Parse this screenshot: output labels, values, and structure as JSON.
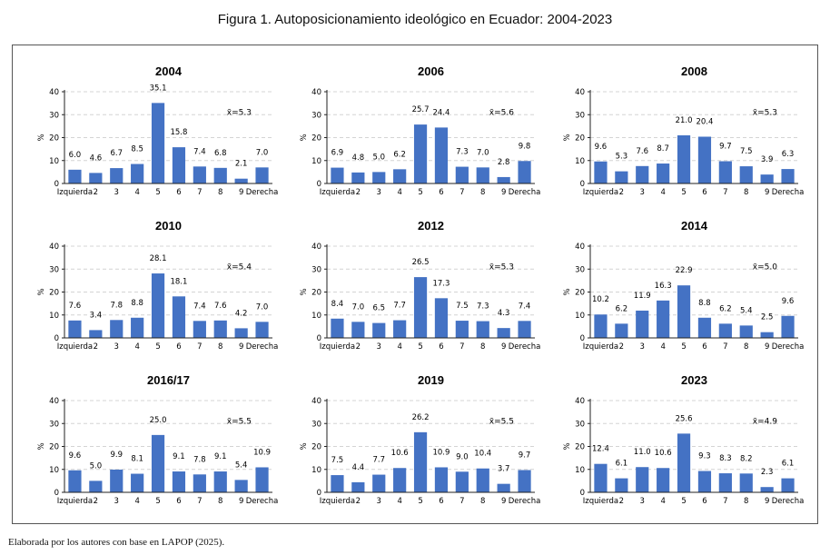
{
  "figure": {
    "title": "Figura 1. Autoposicionamiento ideológico en Ecuador: 2004-2023",
    "source": "Elaborada por los autores con base en LAPOP (2025)."
  },
  "colors": {
    "bar": "#4472c4",
    "grid": "#d4d4d4",
    "axis": "#222222"
  },
  "chart_data": [
    {
      "type": "bar",
      "title": "2004",
      "ylabel": "%",
      "ylim": [
        0,
        40
      ],
      "yticks": [
        0,
        10,
        20,
        30,
        40
      ],
      "grid": true,
      "categories": [
        "Izquierda",
        "2",
        "3",
        "4",
        "5",
        "6",
        "7",
        "8",
        "9",
        "Derecha"
      ],
      "values": [
        6.0,
        4.6,
        6.7,
        8.5,
        35.1,
        15.8,
        7.4,
        6.8,
        2.1,
        7.0
      ],
      "value_labels": [
        "6.0",
        "4.6",
        "6.7",
        "8.5",
        "35.1",
        "15.8",
        "7.4",
        "6.8",
        "2.1",
        "7.0"
      ],
      "mean_label": "x̄=5.3"
    },
    {
      "type": "bar",
      "title": "2006",
      "ylabel": "%",
      "ylim": [
        0,
        40
      ],
      "yticks": [
        0,
        10,
        20,
        30,
        40
      ],
      "grid": true,
      "categories": [
        "Izquierda",
        "2",
        "3",
        "4",
        "5",
        "6",
        "7",
        "8",
        "9",
        "Derecha"
      ],
      "values": [
        6.9,
        4.8,
        5.0,
        6.2,
        25.7,
        24.4,
        7.3,
        7.0,
        2.8,
        9.8
      ],
      "value_labels": [
        "6.9",
        "4.8",
        "5.0",
        "6.2",
        "25.7",
        "24.4",
        "7.3",
        "7.0",
        "2.8",
        "9.8"
      ],
      "mean_label": "x̄=5.6"
    },
    {
      "type": "bar",
      "title": "2008",
      "ylabel": "%",
      "ylim": [
        0,
        40
      ],
      "yticks": [
        0,
        10,
        20,
        30,
        40
      ],
      "grid": true,
      "categories": [
        "Izquierda",
        "2",
        "3",
        "4",
        "5",
        "6",
        "7",
        "8",
        "9",
        "Derecha"
      ],
      "values": [
        9.6,
        5.3,
        7.6,
        8.7,
        21.0,
        20.4,
        9.7,
        7.5,
        3.9,
        6.3
      ],
      "value_labels": [
        "9.6",
        "5.3",
        "7.6",
        "8.7",
        "21.0",
        "20.4",
        "9.7",
        "7.5",
        "3.9",
        "6.3"
      ],
      "mean_label": "x̄=5.3"
    },
    {
      "type": "bar",
      "title": "2010",
      "ylabel": "%",
      "ylim": [
        0,
        40
      ],
      "yticks": [
        0,
        10,
        20,
        30,
        40
      ],
      "grid": true,
      "categories": [
        "Izquierda",
        "2",
        "3",
        "4",
        "5",
        "6",
        "7",
        "8",
        "9",
        "Derecha"
      ],
      "values": [
        7.6,
        3.4,
        7.8,
        8.8,
        28.1,
        18.1,
        7.4,
        7.6,
        4.2,
        7.0
      ],
      "value_labels": [
        "7.6",
        "3.4",
        "7.8",
        "8.8",
        "28.1",
        "18.1",
        "7.4",
        "7.6",
        "4.2",
        "7.0"
      ],
      "mean_label": "x̄=5.4"
    },
    {
      "type": "bar",
      "title": "2012",
      "ylabel": "%",
      "ylim": [
        0,
        40
      ],
      "yticks": [
        0,
        10,
        20,
        30,
        40
      ],
      "grid": true,
      "categories": [
        "Izquierda",
        "2",
        "3",
        "4",
        "5",
        "6",
        "7",
        "8",
        "9",
        "Derecha"
      ],
      "values": [
        8.4,
        7.0,
        6.5,
        7.7,
        26.5,
        17.3,
        7.5,
        7.3,
        4.3,
        7.4
      ],
      "value_labels": [
        "8.4",
        "7.0",
        "6.5",
        "7.7",
        "26.5",
        "17.3",
        "7.5",
        "7.3",
        "4.3",
        "7.4"
      ],
      "mean_label": "x̄=5.3"
    },
    {
      "type": "bar",
      "title": "2014",
      "ylabel": "%",
      "ylim": [
        0,
        40
      ],
      "yticks": [
        0,
        10,
        20,
        30,
        40
      ],
      "grid": true,
      "categories": [
        "Izquierda",
        "2",
        "3",
        "4",
        "5",
        "6",
        "7",
        "8",
        "9",
        "Derecha"
      ],
      "values": [
        10.2,
        6.2,
        11.9,
        16.3,
        22.9,
        8.8,
        6.2,
        5.4,
        2.5,
        9.6
      ],
      "value_labels": [
        "10.2",
        "6.2",
        "11.9",
        "16.3",
        "22.9",
        "8.8",
        "6.2",
        "5.4",
        "2.5",
        "9.6"
      ],
      "mean_label": "x̄=5.0"
    },
    {
      "type": "bar",
      "title": "2016/17",
      "ylabel": "%",
      "ylim": [
        0,
        40
      ],
      "yticks": [
        0,
        10,
        20,
        30,
        40
      ],
      "grid": true,
      "categories": [
        "Izquierda",
        "2",
        "3",
        "4",
        "5",
        "6",
        "7",
        "8",
        "9",
        "Derecha"
      ],
      "values": [
        9.6,
        5.0,
        9.9,
        8.1,
        25.0,
        9.1,
        7.8,
        9.1,
        5.4,
        10.9
      ],
      "value_labels": [
        "9.6",
        "5.0",
        "9.9",
        "8.1",
        "25.0",
        "9.1",
        "7.8",
        "9.1",
        "5.4",
        "10.9"
      ],
      "mean_label": "x̄=5.5"
    },
    {
      "type": "bar",
      "title": "2019",
      "ylabel": "%",
      "ylim": [
        0,
        40
      ],
      "yticks": [
        0,
        10,
        20,
        30,
        40
      ],
      "grid": true,
      "categories": [
        "Izquierda",
        "2",
        "3",
        "4",
        "5",
        "6",
        "7",
        "8",
        "9",
        "Derecha"
      ],
      "values": [
        7.5,
        4.4,
        7.7,
        10.6,
        26.2,
        10.9,
        9.0,
        10.4,
        3.7,
        9.7
      ],
      "value_labels": [
        "7.5",
        "4.4",
        "7.7",
        "10.6",
        "26.2",
        "10.9",
        "9.0",
        "10.4",
        "3.7",
        "9.7"
      ],
      "mean_label": "x̄=5.5"
    },
    {
      "type": "bar",
      "title": "2023",
      "ylabel": "%",
      "ylim": [
        0,
        40
      ],
      "yticks": [
        0,
        10,
        20,
        30,
        40
      ],
      "grid": true,
      "categories": [
        "Izquierda",
        "2",
        "3",
        "4",
        "5",
        "6",
        "7",
        "8",
        "9",
        "Derecha"
      ],
      "values": [
        12.4,
        6.1,
        11.0,
        10.6,
        25.6,
        9.3,
        8.3,
        8.2,
        2.3,
        6.1
      ],
      "value_labels": [
        "12.4",
        "6.1",
        "11.0",
        "10.6",
        "25.6",
        "9.3",
        "8.3",
        "8.2",
        "2.3",
        "6.1"
      ],
      "mean_label": "x̄=4.9"
    }
  ]
}
